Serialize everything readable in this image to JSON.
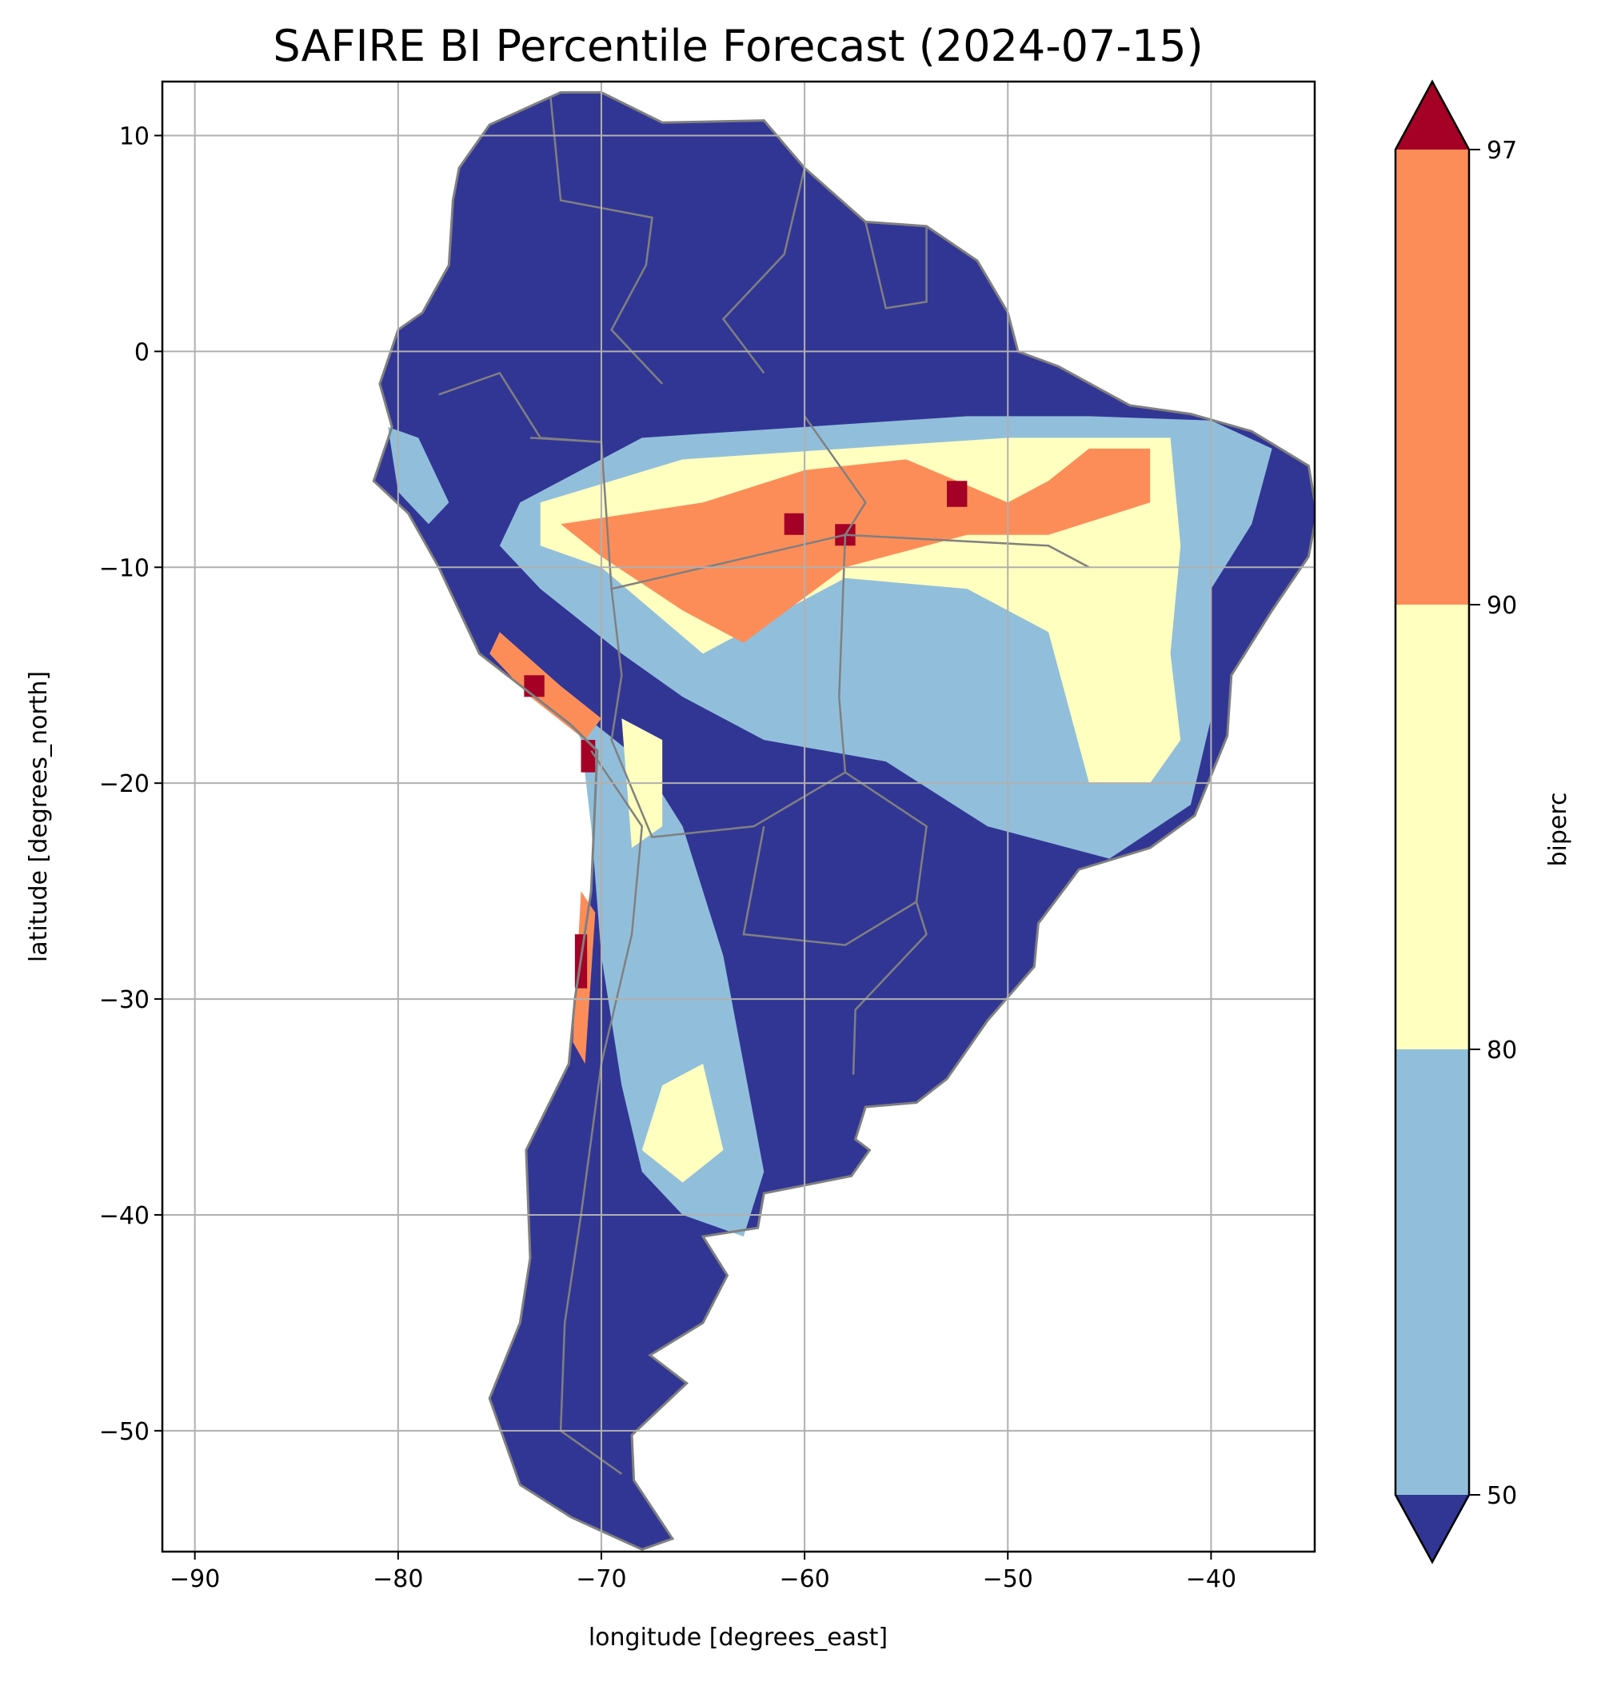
{
  "chart_data": {
    "type": "heatmap",
    "title": "SAFIRE BI Percentile Forecast (2024-07-15)",
    "xlabel": "longitude [degrees_east]",
    "ylabel": "latitude [degrees_north]",
    "xlim": [
      -91.6,
      -34.9
    ],
    "ylim": [
      -55.6,
      12.5
    ],
    "xticks": [
      -90,
      -80,
      -70,
      -60,
      -50,
      -40
    ],
    "xtick_labels": [
      "−90",
      "−80",
      "−70",
      "−60",
      "−50",
      "−40"
    ],
    "yticks": [
      10,
      0,
      -10,
      -20,
      -30,
      -40,
      -50
    ],
    "ytick_labels": [
      "10",
      "0",
      "−10",
      "−20",
      "−30",
      "−40",
      "−50"
    ],
    "grid": true,
    "colorbar": {
      "label": "biperc",
      "levels": [
        50,
        80,
        90,
        97
      ],
      "level_labels": [
        "50",
        "80",
        "90",
        "97"
      ],
      "extend": "both",
      "colors": {
        "under": "#313695",
        "50-80": "#91bfdb",
        "80-90": "#ffffbf",
        "90-97": "#fc8d59",
        "over": "#a50026"
      }
    },
    "border_color": "#808080",
    "regions": [
      {
        "class": "under",
        "poly": [
          [
            -77,
            8.5
          ],
          [
            -75.5,
            10.5
          ],
          [
            -72,
            12
          ],
          [
            -70,
            12
          ],
          [
            -67,
            10.6
          ],
          [
            -62,
            10.7
          ],
          [
            -60,
            8.5
          ],
          [
            -57,
            6
          ],
          [
            -54,
            5.8
          ],
          [
            -51.5,
            4.2
          ],
          [
            -50,
            1.8
          ],
          [
            -49.5,
            0
          ],
          [
            -47.5,
            -0.7
          ],
          [
            -44,
            -2.5
          ],
          [
            -41,
            -2.9
          ],
          [
            -38,
            -3.7
          ],
          [
            -35.2,
            -5.3
          ],
          [
            -34.8,
            -7.5
          ],
          [
            -35.2,
            -9.5
          ],
          [
            -37,
            -12
          ],
          [
            -39,
            -15
          ],
          [
            -39.2,
            -17.8
          ],
          [
            -40.8,
            -21.5
          ],
          [
            -43,
            -23
          ],
          [
            -46.5,
            -24
          ],
          [
            -48.5,
            -26.5
          ],
          [
            -48.7,
            -28.5
          ],
          [
            -51,
            -31
          ],
          [
            -53,
            -33.7
          ],
          [
            -54.5,
            -34.8
          ],
          [
            -57,
            -35
          ],
          [
            -57.5,
            -36.5
          ],
          [
            -56.8,
            -37
          ],
          [
            -57.7,
            -38.2
          ],
          [
            -62,
            -39
          ],
          [
            -62.3,
            -40.6
          ],
          [
            -65,
            -41
          ],
          [
            -63.8,
            -42.8
          ],
          [
            -65,
            -45
          ],
          [
            -67.6,
            -46.5
          ],
          [
            -65.8,
            -47.8
          ],
          [
            -68.5,
            -50.2
          ],
          [
            -68.4,
            -52.3
          ],
          [
            -66.5,
            -55
          ],
          [
            -68,
            -55.5
          ],
          [
            -71.5,
            -54
          ],
          [
            -74,
            -52.5
          ],
          [
            -75.5,
            -48.5
          ],
          [
            -74,
            -45
          ],
          [
            -73.5,
            -42
          ],
          [
            -73.7,
            -37
          ],
          [
            -71.6,
            -33
          ],
          [
            -71.3,
            -30
          ],
          [
            -70.5,
            -25
          ],
          [
            -70.2,
            -18.5
          ],
          [
            -71.5,
            -17.3
          ],
          [
            -76,
            -14
          ],
          [
            -78,
            -10
          ],
          [
            -79.5,
            -7.5
          ],
          [
            -81.2,
            -6
          ],
          [
            -80.3,
            -3.5
          ],
          [
            -80.9,
            -1.5
          ],
          [
            -80,
            1
          ],
          [
            -78.8,
            1.8
          ],
          [
            -77.5,
            4
          ],
          [
            -77.3,
            7
          ]
        ]
      },
      {
        "class": "50-80",
        "poly": [
          [
            -74,
            -7
          ],
          [
            -68,
            -4
          ],
          [
            -60,
            -3.5
          ],
          [
            -52,
            -3
          ],
          [
            -46,
            -3
          ],
          [
            -40,
            -3.2
          ],
          [
            -37,
            -4.5
          ],
          [
            -38,
            -8
          ],
          [
            -40,
            -11
          ],
          [
            -40,
            -17
          ],
          [
            -41,
            -21
          ],
          [
            -45,
            -23.5
          ],
          [
            -51,
            -22
          ],
          [
            -56,
            -19
          ],
          [
            -62,
            -18
          ],
          [
            -66,
            -16
          ],
          [
            -69,
            -14
          ],
          [
            -73,
            -11
          ],
          [
            -75,
            -9
          ]
        ]
      },
      {
        "class": "50-80",
        "poly": [
          [
            -72,
            -16
          ],
          [
            -68,
            -19
          ],
          [
            -66,
            -22
          ],
          [
            -64,
            -28
          ],
          [
            -63,
            -33
          ],
          [
            -62,
            -38
          ],
          [
            -63,
            -41
          ],
          [
            -66,
            -40
          ],
          [
            -68,
            -38
          ],
          [
            -69,
            -34
          ],
          [
            -70,
            -28
          ],
          [
            -70.5,
            -22
          ],
          [
            -71,
            -18
          ]
        ]
      },
      {
        "class": "50-80",
        "poly": [
          [
            -80.5,
            -3.5
          ],
          [
            -79,
            -4
          ],
          [
            -77.5,
            -7
          ],
          [
            -78.5,
            -8
          ],
          [
            -80,
            -6.5
          ]
        ]
      },
      {
        "class": "80-90",
        "poly": [
          [
            -73,
            -7
          ],
          [
            -66,
            -5
          ],
          [
            -58,
            -4.5
          ],
          [
            -50,
            -4
          ],
          [
            -46,
            -4
          ],
          [
            -42,
            -4
          ],
          [
            -41.5,
            -9
          ],
          [
            -42,
            -14
          ],
          [
            -41.5,
            -18
          ],
          [
            -43,
            -20
          ],
          [
            -46,
            -20
          ],
          [
            -48,
            -13
          ],
          [
            -52,
            -11
          ],
          [
            -58,
            -10.5
          ],
          [
            -65,
            -14
          ],
          [
            -70,
            -10
          ],
          [
            -73,
            -9
          ]
        ]
      },
      {
        "class": "80-90",
        "poly": [
          [
            -67,
            -34
          ],
          [
            -65,
            -33
          ],
          [
            -64,
            -37
          ],
          [
            -66,
            -38.5
          ],
          [
            -68,
            -37
          ]
        ]
      },
      {
        "class": "80-90",
        "poly": [
          [
            -69,
            -17
          ],
          [
            -67,
            -18
          ],
          [
            -67,
            -22
          ],
          [
            -68.5,
            -23
          ]
        ]
      },
      {
        "class": "90-97",
        "poly": [
          [
            -72,
            -8
          ],
          [
            -65,
            -7
          ],
          [
            -60,
            -5.5
          ],
          [
            -55,
            -5
          ],
          [
            -50,
            -7
          ],
          [
            -48,
            -6
          ],
          [
            -46,
            -4.5
          ],
          [
            -43,
            -4.5
          ],
          [
            -43,
            -7
          ],
          [
            -48,
            -8.5
          ],
          [
            -52,
            -8.5
          ],
          [
            -58,
            -10
          ],
          [
            -63,
            -13.5
          ],
          [
            -66,
            -12
          ],
          [
            -70,
            -9.5
          ]
        ]
      },
      {
        "class": "90-97",
        "poly": [
          [
            -75,
            -13
          ],
          [
            -72,
            -15.5
          ],
          [
            -70,
            -17
          ],
          [
            -70.8,
            -18
          ],
          [
            -73.5,
            -16
          ],
          [
            -75.5,
            -14
          ]
        ]
      },
      {
        "class": "90-97",
        "poly": [
          [
            -71,
            -25
          ],
          [
            -70.3,
            -26
          ],
          [
            -70.8,
            -33
          ],
          [
            -71.4,
            -32
          ]
        ]
      },
      {
        "class": "over",
        "poly": [
          [
            -53,
            -6
          ],
          [
            -52,
            -6
          ],
          [
            -52,
            -7.2
          ],
          [
            -53,
            -7.2
          ]
        ]
      },
      {
        "class": "over",
        "poly": [
          [
            -58.5,
            -8
          ],
          [
            -57.5,
            -8
          ],
          [
            -57.5,
            -9
          ],
          [
            -58.5,
            -9
          ]
        ]
      },
      {
        "class": "over",
        "poly": [
          [
            -61,
            -7.5
          ],
          [
            -60,
            -7.5
          ],
          [
            -60,
            -8.5
          ],
          [
            -61,
            -8.5
          ]
        ]
      },
      {
        "class": "over",
        "poly": [
          [
            -73.8,
            -15
          ],
          [
            -72.8,
            -15
          ],
          [
            -72.8,
            -16
          ],
          [
            -73.8,
            -16
          ]
        ]
      },
      {
        "class": "over",
        "poly": [
          [
            -71,
            -18
          ],
          [
            -70.3,
            -18
          ],
          [
            -70.3,
            -19.5
          ],
          [
            -71,
            -19.5
          ]
        ]
      },
      {
        "class": "over",
        "poly": [
          [
            -71.3,
            -27
          ],
          [
            -70.7,
            -27
          ],
          [
            -70.7,
            -29.5
          ],
          [
            -71.3,
            -29.5
          ]
        ]
      }
    ],
    "borders": [
      [
        [
          -73.5,
          -4
        ],
        [
          -70,
          -4.2
        ],
        [
          -69.5,
          -11
        ],
        [
          -58,
          -8.5
        ],
        [
          -48,
          -9
        ],
        [
          -46,
          -10
        ]
      ],
      [
        [
          -60,
          -3
        ],
        [
          -57,
          -7
        ],
        [
          -58,
          -8.5
        ],
        [
          -58.3,
          -16
        ],
        [
          -58,
          -19.5
        ],
        [
          -54,
          -22
        ],
        [
          -54.5,
          -25.5
        ]
      ],
      [
        [
          -69.5,
          -11
        ],
        [
          -69,
          -15
        ],
        [
          -69.5,
          -18
        ],
        [
          -67.5,
          -22.5
        ],
        [
          -62.5,
          -22
        ],
        [
          -58,
          -19.5
        ]
      ],
      [
        [
          -62,
          -22
        ],
        [
          -63,
          -27
        ],
        [
          -58,
          -27.5
        ],
        [
          -54.5,
          -25.5
        ],
        [
          -54,
          -27
        ],
        [
          -57.5,
          -30.5
        ],
        [
          -57.6,
          -33.5
        ]
      ],
      [
        [
          -70.5,
          -18.5
        ],
        [
          -68,
          -22
        ],
        [
          -68.5,
          -27
        ],
        [
          -70,
          -33
        ],
        [
          -71,
          -40
        ],
        [
          -71.8,
          -45
        ],
        [
          -72,
          -50
        ],
        [
          -69,
          -52
        ]
      ],
      [
        [
          -67,
          -1.5
        ],
        [
          -69.5,
          1
        ],
        [
          -67.8,
          4
        ],
        [
          -67.5,
          6.2
        ],
        [
          -72,
          7
        ],
        [
          -72.5,
          11.8
        ]
      ],
      [
        [
          -78,
          -2
        ],
        [
          -75,
          -1
        ],
        [
          -73,
          -4
        ],
        [
          -70,
          -4.2
        ]
      ],
      [
        [
          -62,
          -1
        ],
        [
          -64,
          1.5
        ],
        [
          -61,
          4.5
        ],
        [
          -60,
          8.5
        ]
      ],
      [
        [
          -57,
          6
        ],
        [
          -56,
          2
        ],
        [
          -54,
          2.3
        ],
        [
          -54,
          5.8
        ]
      ]
    ]
  }
}
